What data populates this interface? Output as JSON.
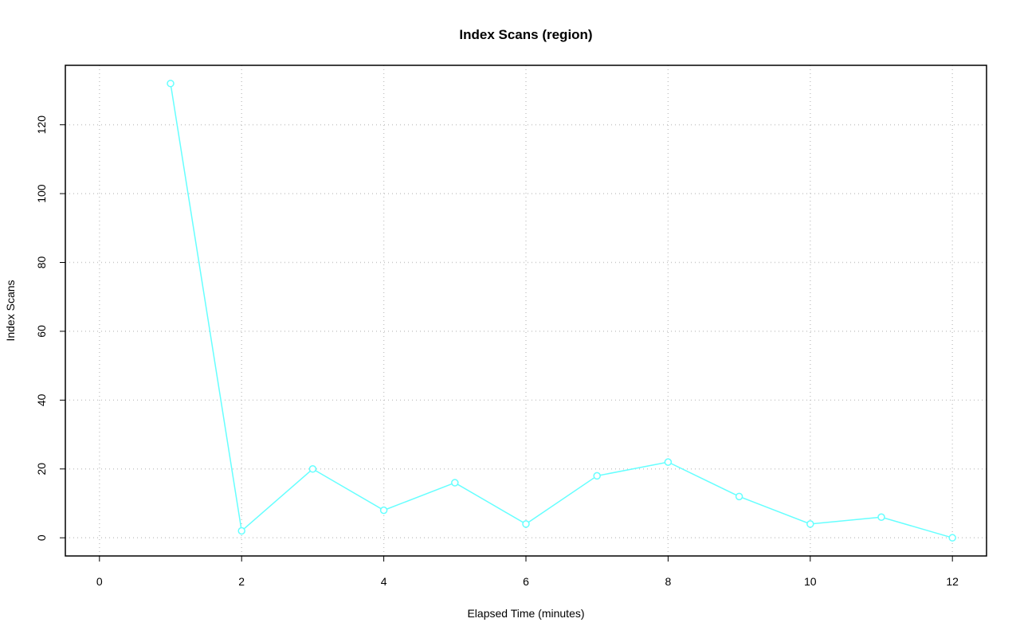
{
  "chart_data": {
    "type": "line",
    "title": "Index Scans (region)",
    "x_label": "Elapsed Time (minutes)",
    "y_label": "Index Scans",
    "x": [
      1,
      2,
      3,
      4,
      5,
      6,
      7,
      8,
      9,
      10,
      11,
      12
    ],
    "series": [
      {
        "name": "Index Scans",
        "color": "#66ffff",
        "values": [
          132,
          2,
          20,
          8,
          16,
          4,
          18,
          22,
          12,
          4,
          6,
          0
        ]
      }
    ],
    "xlim": [
      -0.48,
      12.48
    ],
    "ylim": [
      -5.28,
      137.28
    ],
    "xticks": [
      0,
      2,
      4,
      6,
      8,
      10,
      12
    ],
    "yticks": [
      0,
      20,
      40,
      60,
      80,
      100,
      120
    ],
    "grid": true,
    "markers": true
  }
}
